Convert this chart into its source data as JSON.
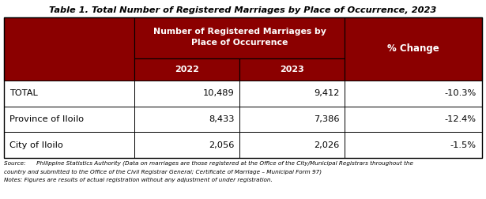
{
  "title": "Table 1. Total Number of Registered Marriages by Place of Occurrence, 2023",
  "header_main": "Number of Registered Marriages by\nPlace of Occurrence",
  "header_pct": "% Change",
  "col_year1": "2022",
  "col_year2": "2023",
  "rows": [
    {
      "label": "TOTAL",
      "val2022": "10,489",
      "val2023": "9,412",
      "pct": "-10.3%"
    },
    {
      "label": "Province of Iloilo",
      "val2022": "8,433",
      "val2023": "7,386",
      "pct": "-12.4%"
    },
    {
      "label": "City of Iloilo",
      "val2022": "2,056",
      "val2023": "2,026",
      "pct": "-1.5%"
    }
  ],
  "header_bg": "#8B0000",
  "header_text": "#FFFFFF",
  "row_bg": "#FFFFFF",
  "row_text": "#000000",
  "border_color": "#000000",
  "title_color": "#000000",
  "source_text_line1": "Source:      Philippine Statistics Authority (Data on marriages are those registered at the Office of the City/Municipal Registrars throughout the",
  "source_text_line2": "country and submitted to the Office of the Civil Registrar General; Certificate of Marriage – Municipal Form 97)",
  "source_text_line3": "Notes: Figures are results of actual registration without any adjustment of under registration.",
  "figsize": [
    6.15,
    2.52
  ],
  "dpi": 100
}
